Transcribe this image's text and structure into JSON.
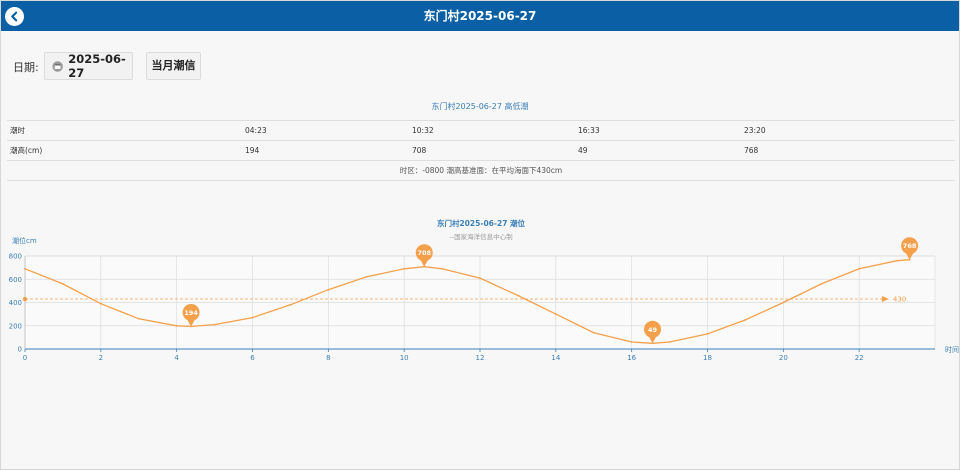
{
  "header": {
    "title": "东门村2025-06-27",
    "back_icon": "chevron-left-icon"
  },
  "toolbar": {
    "date_label": "日期:",
    "date_value": "2025-06-27",
    "calendar_icon": "calendar-icon",
    "month_button": "当月潮信"
  },
  "table": {
    "title": "东门村2025-06-27 高低潮",
    "rows": [
      {
        "label": "潮时",
        "cells": [
          "04:23",
          "10:32",
          "16:33",
          "23:20"
        ]
      },
      {
        "label": "潮高(cm)",
        "cells": [
          "194",
          "708",
          "49",
          "768"
        ]
      }
    ],
    "note": "时区：-0800 潮高基准面：在平均海面下430cm"
  },
  "chart_data": {
    "type": "line",
    "title": "东门村2025-06-27 潮位",
    "subtitle": "--国家海洋信息中心制",
    "ylabel": "潮位cm",
    "xlabel": "时间",
    "xlim": [
      0,
      24
    ],
    "ylim": [
      0,
      800
    ],
    "x_ticks": [
      0,
      2,
      4,
      6,
      8,
      10,
      12,
      14,
      16,
      18,
      20,
      22
    ],
    "y_ticks": [
      0,
      200,
      400,
      600,
      800
    ],
    "grid": true,
    "color": "#f5a04a",
    "axis_color": "#3c7fb8",
    "series": [
      {
        "x": [
          0,
          1,
          2,
          3,
          4,
          4.38,
          5,
          6,
          7,
          8,
          9,
          10,
          10.53,
          11,
          12,
          13,
          14,
          15,
          16,
          16.55,
          17,
          18,
          19,
          20,
          21,
          22,
          23,
          23.33
        ],
        "values": [
          690,
          560,
          390,
          260,
          200,
          194,
          210,
          270,
          380,
          510,
          620,
          690,
          708,
          690,
          610,
          460,
          300,
          140,
          60,
          49,
          60,
          130,
          250,
          400,
          560,
          690,
          760,
          768
        ]
      }
    ],
    "mean_line": {
      "value": 430,
      "label": "430"
    },
    "markers": [
      {
        "x": 4.38,
        "value": 194,
        "label": "194"
      },
      {
        "x": 10.53,
        "value": 708,
        "label": "708"
      },
      {
        "x": 16.55,
        "value": 49,
        "label": "49"
      },
      {
        "x": 23.33,
        "value": 768,
        "label": "768"
      }
    ]
  }
}
